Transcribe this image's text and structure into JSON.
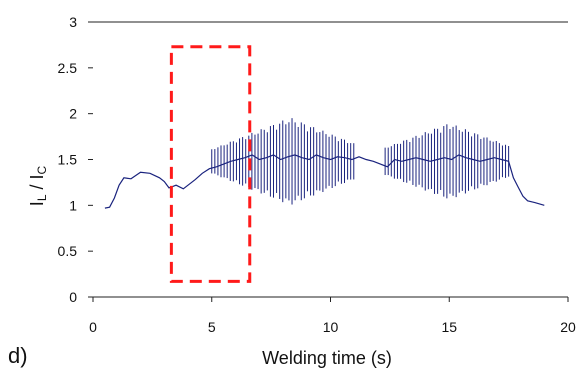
{
  "panel_label": "d)",
  "chart_data": {
    "type": "line",
    "title": "",
    "xlabel": "Welding time (s)",
    "ylabel": {
      "main": "I",
      "sub1": "L",
      "sep": " / I",
      "sub2": "C"
    },
    "xlim": [
      0,
      20
    ],
    "ylim": [
      0,
      3
    ],
    "xticks": [
      "0",
      "5",
      "10",
      "15",
      "20"
    ],
    "yticks": [
      "0",
      "0.5",
      "1",
      "1.5",
      "2",
      "2.5",
      "3"
    ],
    "grid": false,
    "top_reference_line": 3,
    "colors": {
      "series": "#1a237e",
      "highlight": "#ff1a1a",
      "axis": "#222222"
    },
    "series": [
      {
        "x": [
          0.5,
          0.7,
          0.9,
          1.1,
          1.3,
          1.6,
          2.0,
          2.4,
          2.8,
          3.0,
          3.2,
          3.5,
          3.8,
          4.0,
          4.3,
          4.6,
          4.9,
          5.2,
          5.5,
          5.8,
          6.1,
          6.4,
          6.7,
          7.0,
          7.3,
          7.6,
          7.9,
          8.2,
          8.5,
          8.8,
          9.1,
          9.4,
          9.7,
          10.0,
          10.3,
          10.6,
          10.9,
          11.2,
          11.5,
          11.8,
          12.1,
          12.4,
          12.7,
          13.0,
          13.3,
          13.6,
          13.9,
          14.2,
          14.5,
          14.8,
          15.1,
          15.4,
          15.7,
          16.0,
          16.3,
          16.6,
          16.9,
          17.2,
          17.5,
          17.7,
          17.9,
          18.1,
          18.3,
          18.6,
          19.0
        ],
        "y": [
          0.97,
          0.98,
          1.08,
          1.22,
          1.3,
          1.29,
          1.36,
          1.35,
          1.3,
          1.26,
          1.19,
          1.22,
          1.18,
          1.22,
          1.28,
          1.35,
          1.4,
          1.42,
          1.45,
          1.48,
          1.5,
          1.52,
          1.55,
          1.5,
          1.52,
          1.55,
          1.5,
          1.53,
          1.55,
          1.52,
          1.5,
          1.55,
          1.52,
          1.5,
          1.53,
          1.52,
          1.5,
          1.53,
          1.5,
          1.48,
          1.45,
          1.42,
          1.5,
          1.48,
          1.5,
          1.52,
          1.5,
          1.48,
          1.5,
          1.52,
          1.5,
          1.55,
          1.52,
          1.5,
          1.48,
          1.5,
          1.52,
          1.5,
          1.48,
          1.3,
          1.2,
          1.1,
          1.05,
          1.03,
          1.0
        ]
      }
    ],
    "oscillation_bands": [
      {
        "x_start": 5.0,
        "x_end": 11.0,
        "center": 1.48,
        "peak_x": 8.3,
        "peak_amp": 0.48,
        "base_amp": 0.08,
        "step": 0.13
      },
      {
        "x_start": 12.3,
        "x_end": 17.5,
        "center": 1.48,
        "peak_x": 15.0,
        "peak_amp": 0.42,
        "base_amp": 0.08,
        "step": 0.13
      }
    ],
    "highlight_box": {
      "x0": 3.3,
      "x1": 6.6,
      "y0": 0.17,
      "y1": 2.73,
      "style": "dashed"
    }
  }
}
